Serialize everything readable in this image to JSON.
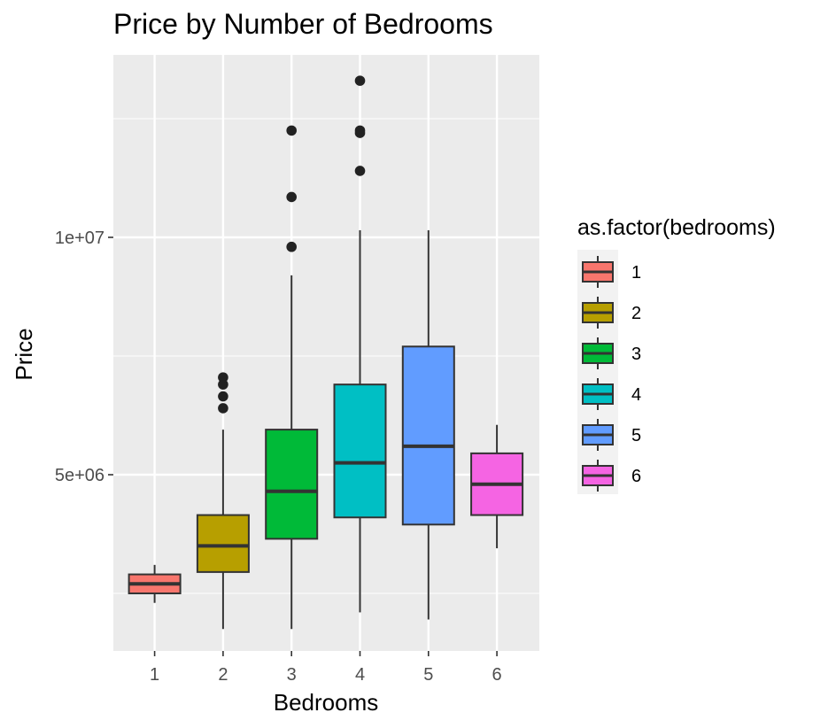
{
  "chart_data": {
    "type": "box",
    "title": "Price by Number of Bedrooms",
    "xlabel": "Bedrooms",
    "ylabel": "Price",
    "categories": [
      "1",
      "2",
      "3",
      "4",
      "5",
      "6"
    ],
    "y_ticks": [
      {
        "value": 5000000,
        "label": "5e+06"
      },
      {
        "value": 10000000,
        "label": "1e+07"
      }
    ],
    "y_minor_gridlines": [
      2500000,
      7500000,
      12500000
    ],
    "ylim": [
      1250000,
      14000000
    ],
    "grid": true,
    "legend": {
      "title": "as.factor(bedrooms)",
      "placement": "right",
      "entries": [
        "1",
        "2",
        "3",
        "4",
        "5",
        "6"
      ]
    },
    "colors": [
      "#F8766D",
      "#B79F00",
      "#00BA38",
      "#00BFC4",
      "#619CFF",
      "#F564E3"
    ],
    "panel_color": "#EBEBEB",
    "boxes": [
      {
        "category": "1",
        "whisker_low": 2300000,
        "q1": 2500000,
        "median": 2700000,
        "q3": 2900000,
        "whisker_high": 3100000,
        "outliers": []
      },
      {
        "category": "2",
        "whisker_low": 1750000,
        "q1": 2950000,
        "median": 3500000,
        "q3": 4150000,
        "whisker_high": 5950000,
        "outliers": [
          6400000,
          6650000,
          6900000,
          7050000
        ]
      },
      {
        "category": "3",
        "whisker_low": 1750000,
        "q1": 3650000,
        "median": 4650000,
        "q3": 5950000,
        "whisker_high": 9200000,
        "outliers": [
          9800000,
          10850000,
          12250000
        ]
      },
      {
        "category": "4",
        "whisker_low": 2100000,
        "q1": 4100000,
        "median": 5250000,
        "q3": 6900000,
        "whisker_high": 10150000,
        "outliers": [
          11400000,
          12200000,
          12250000,
          13300000
        ]
      },
      {
        "category": "5",
        "whisker_low": 1950000,
        "q1": 3950000,
        "median": 5600000,
        "q3": 7700000,
        "whisker_high": 10150000,
        "outliers": []
      },
      {
        "category": "6",
        "whisker_low": 3450000,
        "q1": 4150000,
        "median": 4800000,
        "q3": 5450000,
        "whisker_high": 6050000,
        "outliers": []
      }
    ]
  }
}
